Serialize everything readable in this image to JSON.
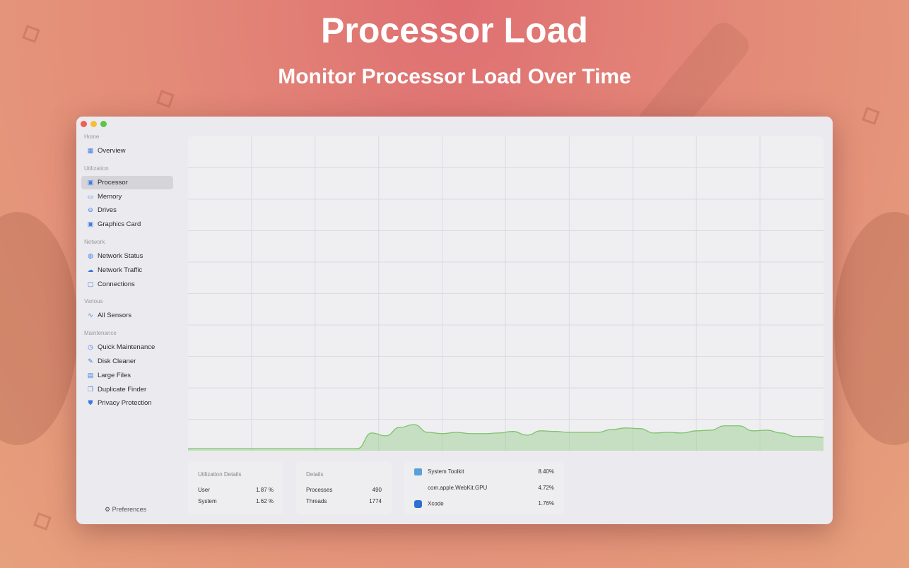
{
  "hero": {
    "title": "Processor Load",
    "subtitle": "Monitor Processor Load Over Time"
  },
  "sidebar": {
    "sections": [
      {
        "label": "Home",
        "items": [
          {
            "label": "Overview",
            "icon": "grid-icon"
          }
        ]
      },
      {
        "label": "Utilization",
        "items": [
          {
            "label": "Processor",
            "icon": "cpu-icon",
            "active": true
          },
          {
            "label": "Memory",
            "icon": "memory-icon"
          },
          {
            "label": "Drives",
            "icon": "drive-icon"
          },
          {
            "label": "Graphics Card",
            "icon": "gpu-icon"
          }
        ]
      },
      {
        "label": "Network",
        "items": [
          {
            "label": "Network Status",
            "icon": "globe-icon"
          },
          {
            "label": "Network Traffic",
            "icon": "cloud-icon"
          },
          {
            "label": "Connections",
            "icon": "monitor-icon"
          }
        ]
      },
      {
        "label": "Various",
        "items": [
          {
            "label": "All Sensors",
            "icon": "pulse-icon"
          }
        ]
      },
      {
        "label": "Maintenance",
        "items": [
          {
            "label": "Quick Maintenance",
            "icon": "timer-icon"
          },
          {
            "label": "Disk Cleaner",
            "icon": "broom-icon"
          },
          {
            "label": "Large Files",
            "icon": "files-icon"
          },
          {
            "label": "Duplicate Finder",
            "icon": "duplicate-icon"
          },
          {
            "label": "Privacy Protection",
            "icon": "shield-icon"
          }
        ]
      }
    ],
    "preferences": "Preferences"
  },
  "chart_data": {
    "type": "area",
    "title": "",
    "xlabel": "",
    "ylabel": "",
    "ylim": [
      0,
      100
    ],
    "grid": true,
    "color": "#7cc46a",
    "values": [
      0,
      0,
      0,
      0,
      0,
      0,
      0,
      0,
      0,
      0,
      0,
      0,
      0,
      5.0,
      4.1,
      6.8,
      7.7,
      5.2,
      4.8,
      5.2,
      4.8,
      4.8,
      5.0,
      5.5,
      4.3,
      5.7,
      5.5,
      5.2,
      5.2,
      5.2,
      6.1,
      6.6,
      6.4,
      5.0,
      5.2,
      5.0,
      5.7,
      5.9,
      7.3,
      7.3,
      5.7,
      5.9,
      5.0,
      3.9,
      3.9,
      3.6
    ]
  },
  "utilization": {
    "title": "Utilization Details",
    "rows": [
      {
        "label": "User",
        "value": "1.87 %"
      },
      {
        "label": "System",
        "value": "1.62 %"
      }
    ]
  },
  "details": {
    "title": "Details",
    "rows": [
      {
        "label": "Processes",
        "value": "490"
      },
      {
        "label": "Threads",
        "value": "1774"
      }
    ]
  },
  "processes": [
    {
      "name": "System Toolkit",
      "value": "8.40%",
      "icon": "system-toolkit-icon"
    },
    {
      "name": "com.apple.WebKit.GPU",
      "value": "4.72%",
      "icon": ""
    },
    {
      "name": "Xcode",
      "value": "1.76%",
      "icon": "xcode-icon"
    }
  ]
}
